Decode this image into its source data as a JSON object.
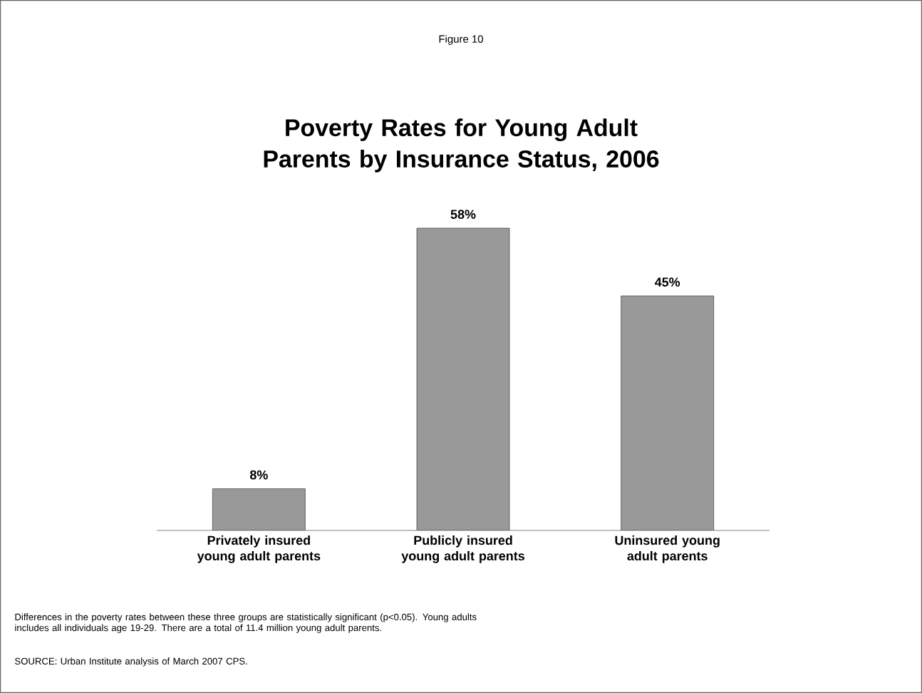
{
  "chart_data": {
    "type": "bar",
    "subtitle": "Figure 10",
    "title": "Poverty Rates for Young Adult Parents by Insurance Status, 2006",
    "categories": [
      "Privately insured young adult parents",
      "Publicly insured young adult parents",
      "Uninsured young adult parents"
    ],
    "values": [
      8,
      58,
      45
    ],
    "value_labels": [
      "8%",
      "58%",
      "45%"
    ],
    "color": "#999999",
    "annotations": [
      "Differences in the poverty rates between these three groups are statistically significant (p<0.05).  Young adults includes all individuals age 19-29.   There are a total of 11.4 million young adult parents.",
      "SOURCE: Urban Institute analysis of March 2007 CPS."
    ]
  }
}
